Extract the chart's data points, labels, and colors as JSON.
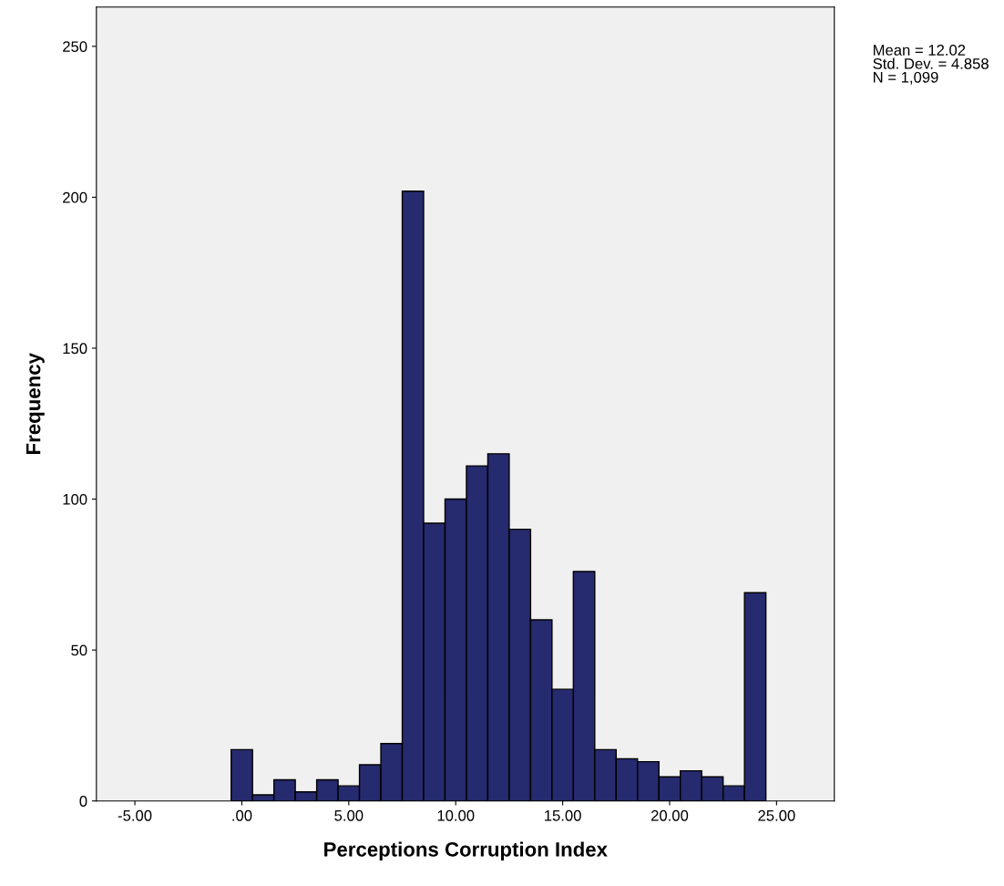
{
  "chart_data": {
    "type": "histogram",
    "xlabel": "Perceptions Corruption Index",
    "ylabel": "Frequency",
    "bins": [
      -0.5,
      0.5,
      1.5,
      2.5,
      3.5,
      4.5,
      5.5,
      6.5,
      7.5,
      8.5,
      9.5,
      10.5,
      11.5,
      12.5,
      13.5,
      14.5,
      15.5,
      16.5,
      17.5,
      18.5,
      19.5,
      20.5,
      21.5,
      22.5,
      23.5,
      24.5
    ],
    "values": [
      17,
      2,
      7,
      3,
      7,
      5,
      12,
      19,
      202,
      92,
      100,
      111,
      115,
      90,
      60,
      37,
      76,
      17,
      14,
      13,
      8,
      10,
      8,
      5,
      69
    ],
    "color": "#262a6e",
    "xlim": [
      -6.8,
      27.7
    ],
    "ylim": [
      0,
      263
    ],
    "xticks": [
      {
        "value": -5,
        "label": "-5.00"
      },
      {
        "value": 0,
        "label": ".00"
      },
      {
        "value": 5,
        "label": "5.00"
      },
      {
        "value": 10,
        "label": "10.00"
      },
      {
        "value": 15,
        "label": "15.00"
      },
      {
        "value": 20,
        "label": "20.00"
      },
      {
        "value": 25,
        "label": "25.00"
      }
    ],
    "yticks": [
      0,
      50,
      100,
      150,
      200,
      250
    ],
    "grid": false,
    "annotations": [
      "Mean = 12.02\nStd. Dev. = 4.858\nN = 1,099"
    ]
  }
}
